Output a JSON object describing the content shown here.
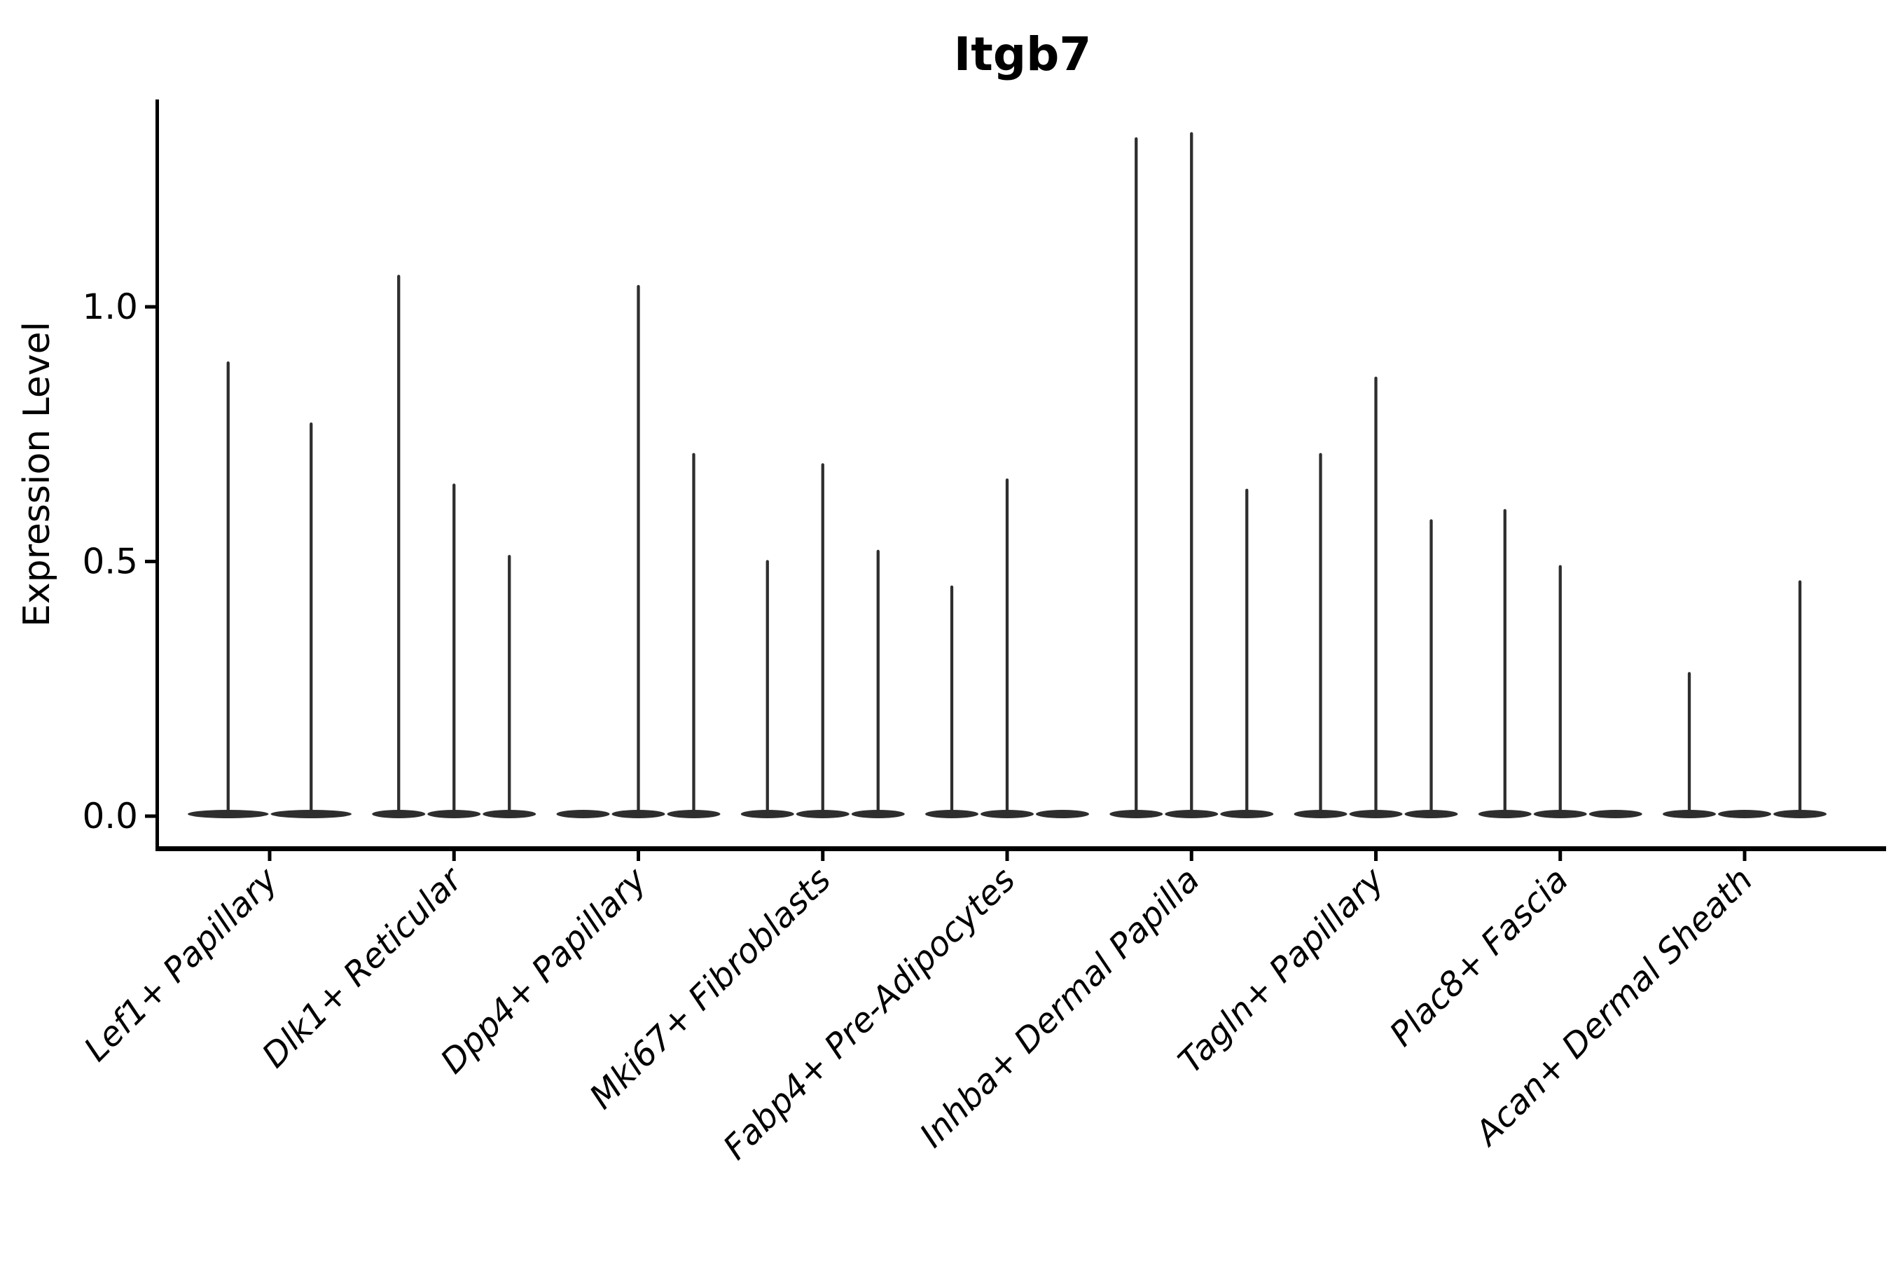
{
  "chart_data": {
    "type": "violin",
    "title": "Itgb7",
    "ylabel": "Expression Level",
    "xlabel": "",
    "ylim": [
      -0.065,
      1.41
    ],
    "grid": false,
    "legend": "none",
    "x_tick_label_rotation_deg": 45,
    "x_tick_label_style": "italic",
    "y_ticks": [
      {
        "value": 0.0,
        "label": "0.0"
      },
      {
        "value": 0.5,
        "label": "0.5"
      },
      {
        "value": 1.0,
        "label": "1.0"
      }
    ],
    "groups": [
      {
        "label": "Lef1+ Papillary",
        "violin_max_values": [
          0.89,
          0.77
        ]
      },
      {
        "label": "Dlk1+ Reticular",
        "violin_max_values": [
          1.06,
          0.65,
          0.51
        ]
      },
      {
        "label": "Dpp4+ Papillary",
        "violin_max_values": [
          0,
          1.04,
          0.71
        ]
      },
      {
        "label": "Mki67+ Fibroblasts",
        "violin_max_values": [
          0.5,
          0.69,
          0.52
        ]
      },
      {
        "label": "Fabp4+ Pre-Adipocytes",
        "violin_max_values": [
          0.45,
          0.66,
          0
        ]
      },
      {
        "label": "Inhba+ Dermal Papilla",
        "violin_max_values": [
          1.33,
          1.34,
          0.64
        ]
      },
      {
        "label": "Tagln+ Papillary",
        "violin_max_values": [
          0.71,
          0.86,
          0.58
        ]
      },
      {
        "label": "Plac8+ Fascia",
        "violin_max_values": [
          0.6,
          0.49,
          0
        ]
      },
      {
        "label": "Acan+ Dermal Sheath",
        "violin_max_values": [
          0.28,
          0,
          0.46
        ]
      }
    ],
    "colors": {
      "violin": "#2e2e2e",
      "axis": "#000000",
      "text": "#000000",
      "background": "#ffffff"
    }
  }
}
